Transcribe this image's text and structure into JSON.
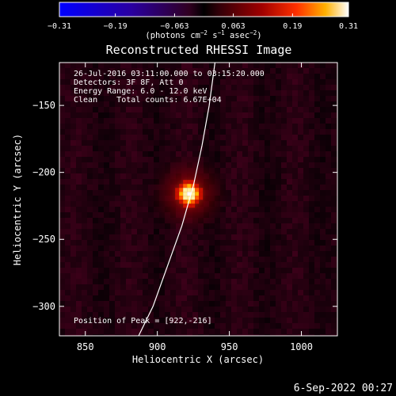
{
  "chart_data": {
    "type": "heatmap",
    "title": "Reconstructed RHESSI Image",
    "xlabel": "Heliocentric X (arcsec)",
    "ylabel": "Heliocentric Y (arcsec)",
    "xlim": [
      832,
      1025
    ],
    "ylim": [
      -322,
      -118
    ],
    "x_ticks": [
      850,
      900,
      950,
      1000
    ],
    "x_tick_labels": [
      "850",
      "900",
      "950",
      "1000"
    ],
    "y_ticks": [
      -150,
      -200,
      -250,
      -300
    ],
    "y_tick_labels": [
      "−150",
      "−200",
      "−250",
      "−300"
    ],
    "colorbar": {
      "min": -0.31,
      "max": 0.31,
      "ticks": [
        -0.31,
        -0.19,
        -0.063,
        0.063,
        0.19,
        0.31
      ],
      "tick_labels": [
        "−0.31",
        "−0.19",
        "−0.063",
        "0.063",
        "0.19",
        "0.31"
      ],
      "unit_label": "(photons cm",
      "unit_exp1": "−2",
      "unit_mid": " s",
      "unit_exp2": "−1",
      "unit_end": " asec",
      "unit_exp3": "−2",
      "unit_close": ")"
    },
    "source": {
      "peak_x": 922,
      "peak_y": -216,
      "peak_value": 0.31
    },
    "limb_curve": [
      [
        887,
        -322
      ],
      [
        897,
        -300
      ],
      [
        907,
        -270
      ],
      [
        917,
        -240
      ],
      [
        925,
        -210
      ],
      [
        931,
        -180
      ],
      [
        936,
        -150
      ],
      [
        940,
        -118
      ]
    ],
    "annotations": [
      "26-Jul-2016 03:11:00.000 to 03:15:20.000",
      "Detectors: 3F 8F, Att 0",
      "Energy Range: 6.0 - 12.0 keV",
      "Clean    Total counts: 6.67E+04"
    ],
    "peak_text": "Position of Peak = [922,-216]",
    "footer_date": "6-Sep-2022 00:27"
  },
  "colors": {
    "background": "#000000",
    "axes": "#ffffff",
    "limb": "#ffffff"
  }
}
